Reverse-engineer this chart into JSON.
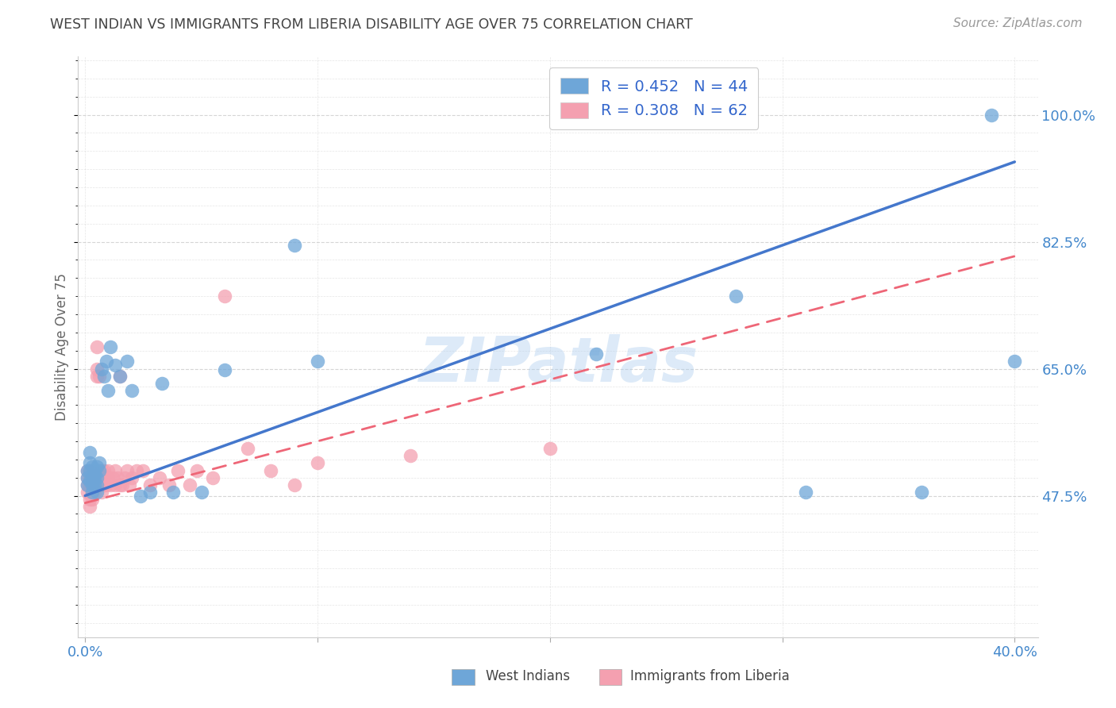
{
  "title": "WEST INDIAN VS IMMIGRANTS FROM LIBERIA DISABILITY AGE OVER 75 CORRELATION CHART",
  "source": "Source: ZipAtlas.com",
  "ylabel": "Disability Age Over 75",
  "blue_color": "#6EA6D8",
  "pink_color": "#F4A0B0",
  "line_blue": "#4477CC",
  "line_pink": "#EE6677",
  "watermark_text": "ZIPatlas",
  "watermark_color": "#AACCEE",
  "legend_label1": "R = 0.452   N = 44",
  "legend_label2": "R = 0.308   N = 62",
  "legend_text_color": "#3366CC",
  "axis_label_color": "#4488CC",
  "title_color": "#444444",
  "source_color": "#999999",
  "grid_color": "#CCCCCC",
  "ytick_positions": [
    0.475,
    0.65,
    0.825,
    1.0
  ],
  "ytick_labels": [
    "47.5%",
    "65.0%",
    "82.5%",
    "100.0%"
  ],
  "xtick_positions": [
    0.0,
    0.4
  ],
  "xtick_labels": [
    "0.0%",
    "40.0%"
  ],
  "xlim": [
    -0.003,
    0.41
  ],
  "ylim": [
    0.28,
    1.08
  ],
  "wi_x": [
    0.001,
    0.001,
    0.001,
    0.002,
    0.002,
    0.002,
    0.002,
    0.003,
    0.003,
    0.003,
    0.003,
    0.004,
    0.004,
    0.004,
    0.004,
    0.005,
    0.005,
    0.005,
    0.005,
    0.006,
    0.006,
    0.007,
    0.008,
    0.009,
    0.01,
    0.011,
    0.013,
    0.015,
    0.018,
    0.02,
    0.024,
    0.028,
    0.033,
    0.038,
    0.05,
    0.06,
    0.09,
    0.1,
    0.22,
    0.28,
    0.31,
    0.36,
    0.39,
    0.4
  ],
  "wi_y": [
    0.49,
    0.51,
    0.5,
    0.495,
    0.51,
    0.52,
    0.535,
    0.5,
    0.515,
    0.48,
    0.49,
    0.5,
    0.51,
    0.49,
    0.505,
    0.5,
    0.49,
    0.515,
    0.48,
    0.52,
    0.51,
    0.65,
    0.64,
    0.66,
    0.62,
    0.68,
    0.655,
    0.64,
    0.66,
    0.62,
    0.475,
    0.48,
    0.63,
    0.48,
    0.48,
    0.648,
    0.82,
    0.66,
    0.67,
    0.75,
    0.48,
    0.48,
    1.0,
    0.66
  ],
  "lib_x": [
    0.001,
    0.001,
    0.001,
    0.001,
    0.002,
    0.002,
    0.002,
    0.002,
    0.002,
    0.003,
    0.003,
    0.003,
    0.003,
    0.003,
    0.004,
    0.004,
    0.004,
    0.005,
    0.005,
    0.005,
    0.005,
    0.006,
    0.006,
    0.006,
    0.007,
    0.007,
    0.007,
    0.008,
    0.008,
    0.008,
    0.009,
    0.009,
    0.01,
    0.01,
    0.011,
    0.012,
    0.013,
    0.013,
    0.014,
    0.015,
    0.015,
    0.016,
    0.017,
    0.018,
    0.019,
    0.02,
    0.022,
    0.025,
    0.028,
    0.032,
    0.036,
    0.04,
    0.045,
    0.048,
    0.055,
    0.06,
    0.07,
    0.08,
    0.09,
    0.1,
    0.14,
    0.2
  ],
  "lib_y": [
    0.48,
    0.49,
    0.5,
    0.51,
    0.46,
    0.49,
    0.5,
    0.51,
    0.47,
    0.49,
    0.48,
    0.5,
    0.51,
    0.47,
    0.48,
    0.5,
    0.49,
    0.5,
    0.65,
    0.64,
    0.68,
    0.5,
    0.49,
    0.64,
    0.48,
    0.5,
    0.51,
    0.5,
    0.49,
    0.51,
    0.49,
    0.5,
    0.51,
    0.5,
    0.49,
    0.5,
    0.51,
    0.49,
    0.5,
    0.49,
    0.64,
    0.49,
    0.5,
    0.51,
    0.49,
    0.5,
    0.51,
    0.51,
    0.49,
    0.5,
    0.49,
    0.51,
    0.49,
    0.51,
    0.5,
    0.75,
    0.54,
    0.51,
    0.49,
    0.52,
    0.53,
    0.54
  ]
}
